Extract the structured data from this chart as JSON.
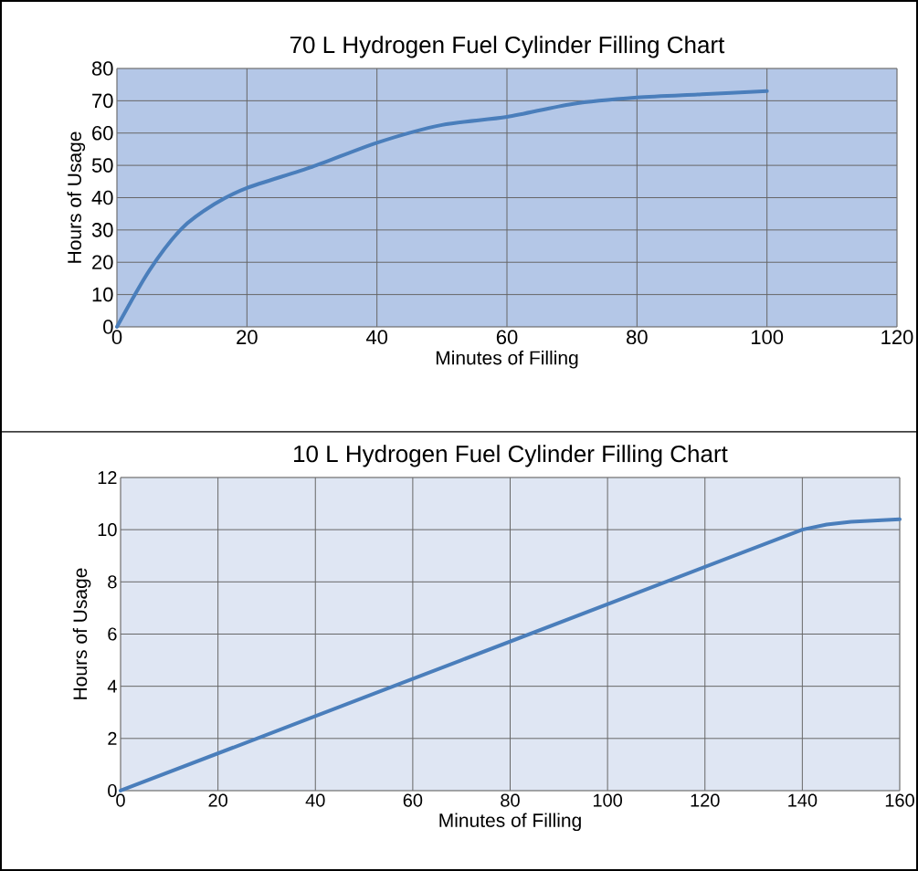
{
  "chart_data": [
    {
      "type": "line",
      "title": "70 L Hydrogen Fuel Cylinder Filling Chart",
      "xlabel": "Minutes of Filling",
      "ylabel": "Hours of Usage",
      "color": "#4a7ebb",
      "x": [
        0,
        5,
        10,
        15,
        20,
        30,
        40,
        50,
        60,
        70,
        80,
        90,
        100
      ],
      "values": [
        0,
        17.5,
        30.5,
        38,
        43,
        49.5,
        57,
        62.5,
        65,
        69,
        71,
        72,
        73
      ],
      "xlim": [
        0,
        120
      ],
      "ylim": [
        0,
        80
      ],
      "xticks": [
        0,
        20,
        40,
        60,
        80,
        100,
        120
      ],
      "yticks": [
        0,
        10,
        20,
        30,
        40,
        50,
        60,
        70,
        80
      ],
      "grid": true
    },
    {
      "type": "line",
      "title": "10 L Hydrogen Fuel Cylinder Filling Chart",
      "xlabel": "Minutes of Filling",
      "ylabel": "Hours of Usage",
      "color": "#4a7ebb",
      "x": [
        0,
        70,
        140,
        145,
        150,
        160
      ],
      "values": [
        0,
        5,
        10,
        10.2,
        10.3,
        10.4
      ],
      "xlim": [
        0,
        160
      ],
      "ylim": [
        0,
        12
      ],
      "xticks": [
        0,
        20,
        40,
        60,
        80,
        100,
        120,
        140,
        160
      ],
      "yticks": [
        0,
        2,
        4,
        6,
        8,
        10,
        12
      ],
      "grid": true
    }
  ]
}
